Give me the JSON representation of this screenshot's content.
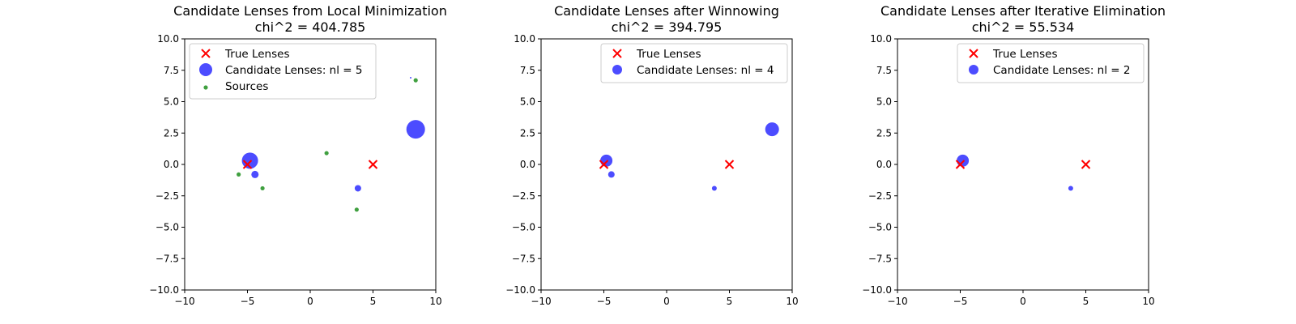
{
  "chart_data": [
    {
      "type": "scatter",
      "title": "Candidate Lenses from Local Minimization",
      "subtitle": "chi^2 = 404.785",
      "xlim": [
        -10,
        10
      ],
      "ylim": [
        -10,
        10
      ],
      "xticks": [
        -10,
        -5,
        0,
        5,
        10
      ],
      "yticks": [
        -10.0,
        -7.5,
        -5.0,
        -2.5,
        0.0,
        2.5,
        5.0,
        7.5,
        10.0
      ],
      "legend_position": "upper-left",
      "series": [
        {
          "name": "True Lenses",
          "marker": "x",
          "color": "#ff0000",
          "points": [
            {
              "x": -5.0,
              "y": 0.0
            },
            {
              "x": 5.0,
              "y": 0.0
            }
          ]
        },
        {
          "name": "Candidate Lenses: nl = 5",
          "marker": "circle",
          "color": "#0000ff",
          "points": [
            {
              "x": -4.8,
              "y": 0.3,
              "size": 1.0
            },
            {
              "x": -4.4,
              "y": -0.8,
              "size": 0.45
            },
            {
              "x": 3.8,
              "y": -1.9,
              "size": 0.4
            },
            {
              "x": 8.4,
              "y": 2.8,
              "size": 1.15
            },
            {
              "x": 8.0,
              "y": 6.9,
              "size": 0.08
            }
          ]
        },
        {
          "name": "Sources",
          "marker": "circle",
          "color": "#008000",
          "points": [
            {
              "x": -5.7,
              "y": -0.8
            },
            {
              "x": -3.8,
              "y": -1.9
            },
            {
              "x": 1.3,
              "y": 0.9
            },
            {
              "x": 3.7,
              "y": -3.6
            },
            {
              "x": 8.4,
              "y": 6.7
            }
          ]
        }
      ]
    },
    {
      "type": "scatter",
      "title": "Candidate Lenses after Winnowing",
      "subtitle": "chi^2 = 394.795",
      "xlim": [
        -10,
        10
      ],
      "ylim": [
        -10,
        10
      ],
      "xticks": [
        -10,
        -5,
        0,
        5,
        10
      ],
      "yticks": [
        -10.0,
        -7.5,
        -5.0,
        -2.5,
        0.0,
        2.5,
        5.0,
        7.5,
        10.0
      ],
      "legend_position": "upper-right",
      "series": [
        {
          "name": "True Lenses",
          "marker": "x",
          "color": "#ff0000",
          "points": [
            {
              "x": -5.0,
              "y": 0.0
            },
            {
              "x": 5.0,
              "y": 0.0
            }
          ]
        },
        {
          "name": "Candidate Lenses: nl = 4",
          "marker": "circle",
          "color": "#0000ff",
          "points": [
            {
              "x": -4.8,
              "y": 0.3,
              "size": 0.75
            },
            {
              "x": -4.4,
              "y": -0.8,
              "size": 0.4
            },
            {
              "x": 3.8,
              "y": -1.9,
              "size": 0.3
            },
            {
              "x": 8.4,
              "y": 2.8,
              "size": 0.85
            }
          ]
        }
      ]
    },
    {
      "type": "scatter",
      "title": "Candidate Lenses after Iterative Elimination",
      "subtitle": "chi^2 = 55.534",
      "xlim": [
        -10,
        10
      ],
      "ylim": [
        -10,
        10
      ],
      "xticks": [
        -10,
        -5,
        0,
        5,
        10
      ],
      "yticks": [
        -10.0,
        -7.5,
        -5.0,
        -2.5,
        0.0,
        2.5,
        5.0,
        7.5,
        10.0
      ],
      "legend_position": "upper-right",
      "series": [
        {
          "name": "True Lenses",
          "marker": "x",
          "color": "#ff0000",
          "points": [
            {
              "x": -5.0,
              "y": 0.0
            },
            {
              "x": 5.0,
              "y": 0.0
            }
          ]
        },
        {
          "name": "Candidate Lenses: nl = 2",
          "marker": "circle",
          "color": "#0000ff",
          "points": [
            {
              "x": -4.8,
              "y": 0.3,
              "size": 0.75
            },
            {
              "x": 3.8,
              "y": -1.9,
              "size": 0.3
            }
          ]
        }
      ]
    }
  ]
}
